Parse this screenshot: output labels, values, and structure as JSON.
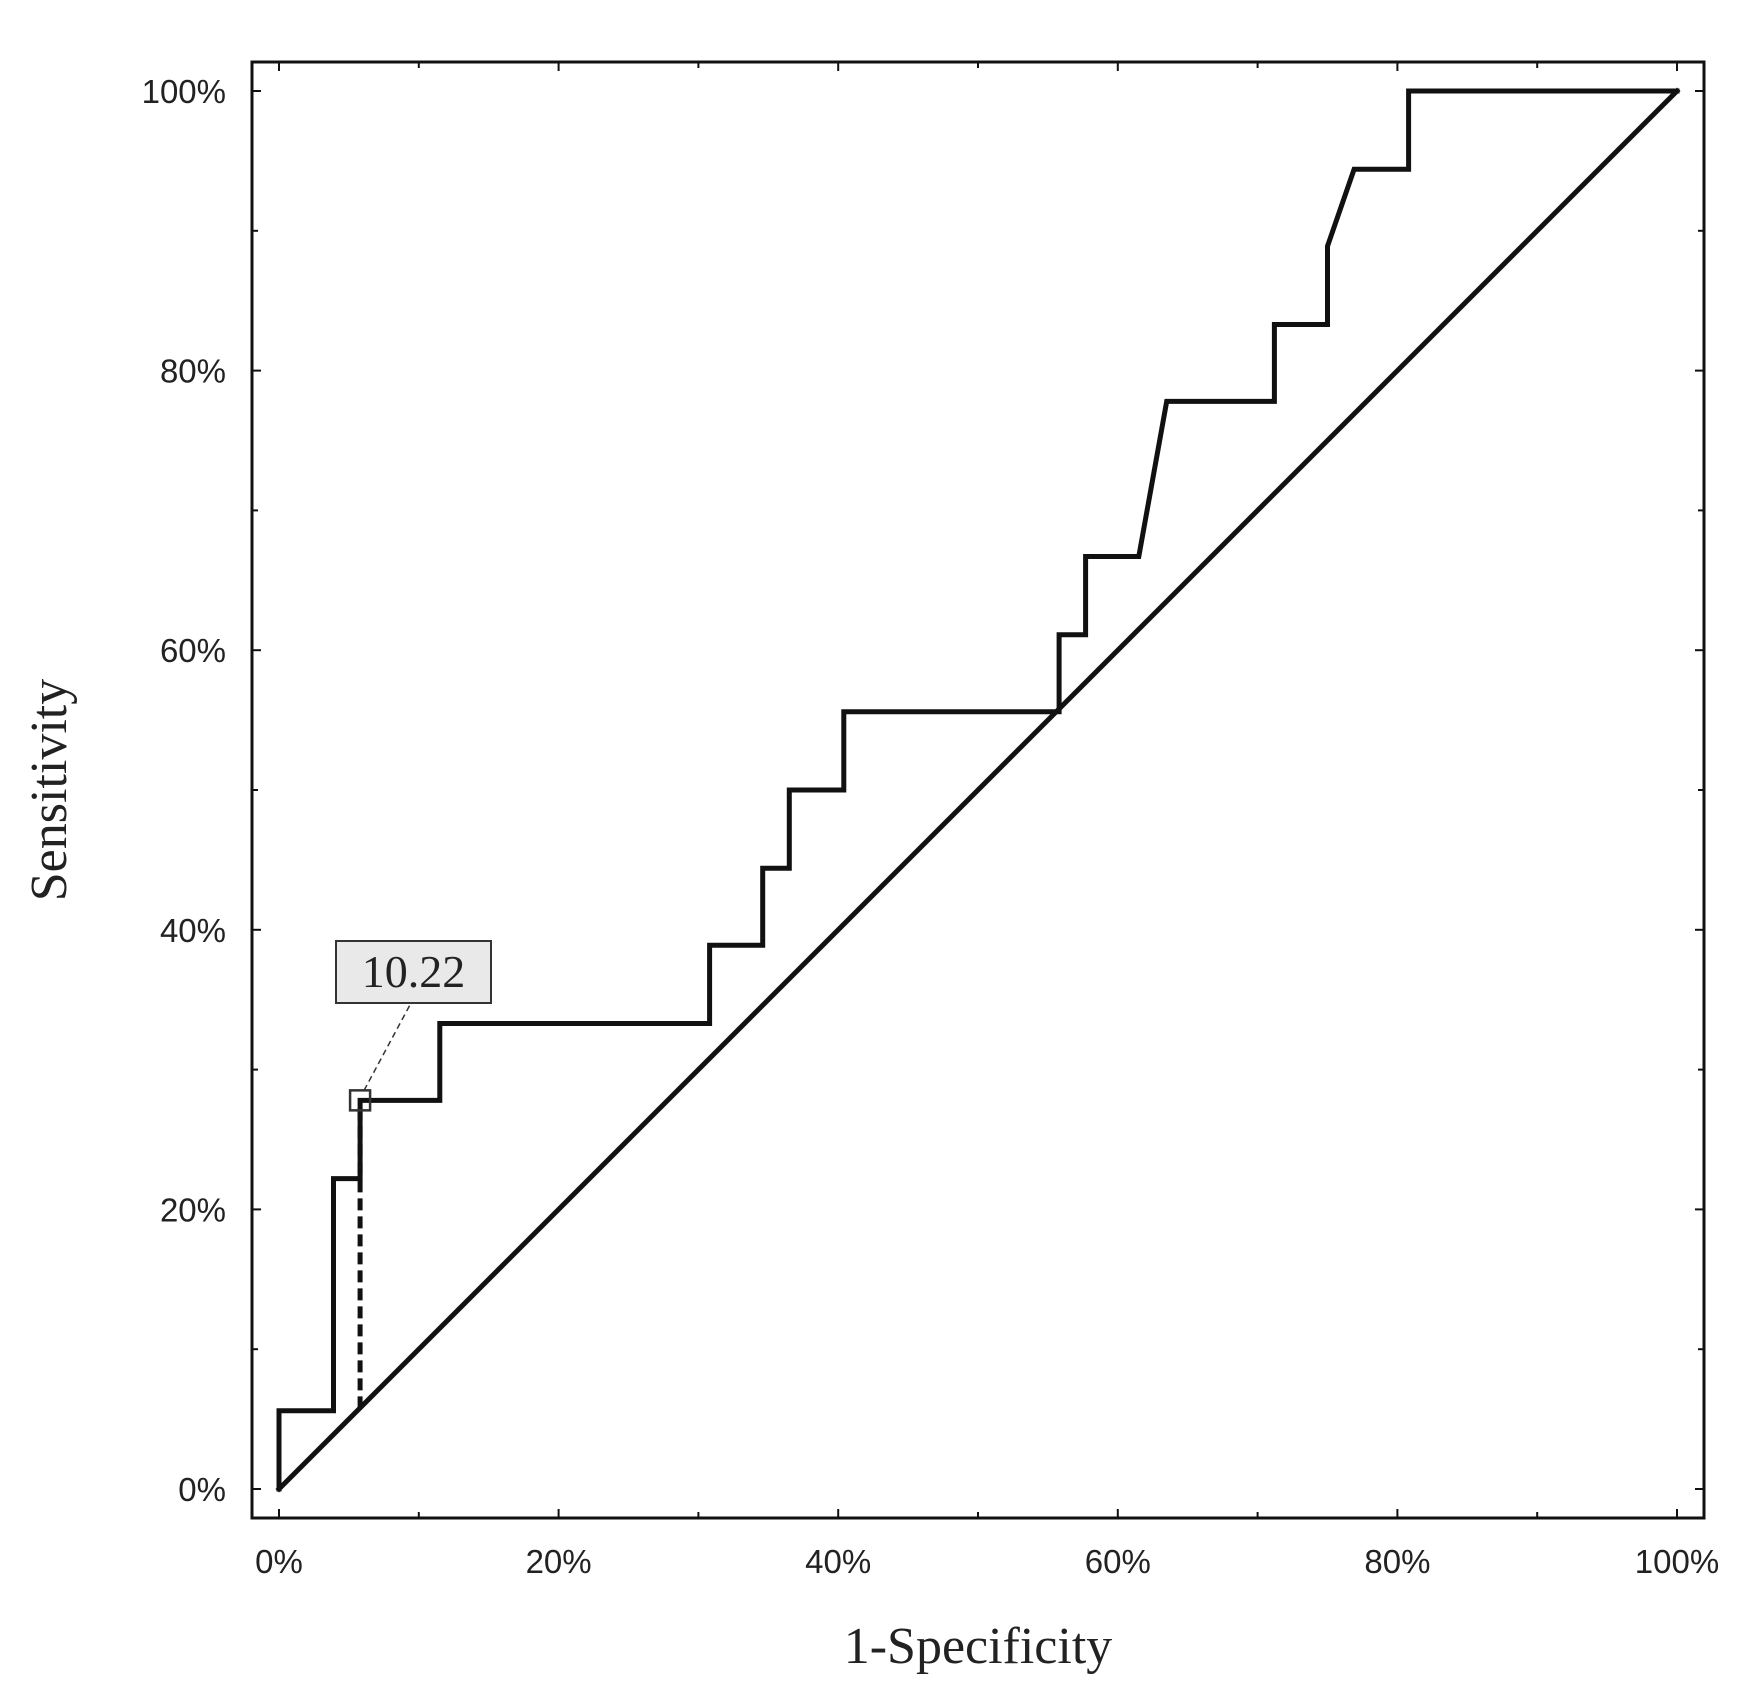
{
  "chart_data": {
    "type": "line",
    "title": "",
    "xlabel": "1-Specificity",
    "ylabel": "Sensitivity",
    "xlim": [
      0,
      100
    ],
    "ylim": [
      0,
      100
    ],
    "x_ticks": [
      "0%",
      "20%",
      "40%",
      "60%",
      "80%",
      "100%"
    ],
    "y_ticks": [
      "0%",
      "20%",
      "40%",
      "60%",
      "80%",
      "100%"
    ],
    "grid": false,
    "legend": "none",
    "series": [
      {
        "x": [
          0,
          0,
          3.9,
          3.9,
          5.8,
          5.8,
          11.5,
          11.5,
          30.8,
          30.8,
          34.6,
          34.6,
          36.5,
          36.5,
          40.4,
          40.4,
          55.8,
          55.8,
          57.7,
          57.7,
          61.5,
          63.5,
          71.2,
          71.2,
          75.0,
          75.0,
          76.9,
          80.8,
          80.8,
          100
        ],
        "y": [
          0,
          5.6,
          5.6,
          22.2,
          22.2,
          27.8,
          27.8,
          33.3,
          33.3,
          38.9,
          38.9,
          44.4,
          44.4,
          50.0,
          50.0,
          55.6,
          55.6,
          61.1,
          61.1,
          66.7,
          66.7,
          77.8,
          77.8,
          83.3,
          83.3,
          88.9,
          94.4,
          94.4,
          100,
          100
        ]
      },
      {
        "x": [
          0,
          100
        ],
        "y": [
          0,
          100
        ]
      }
    ],
    "annotations": [
      {
        "label": "10.22",
        "x": 5.8,
        "y": 27.8,
        "dropline_to_y": 5.8
      }
    ]
  }
}
